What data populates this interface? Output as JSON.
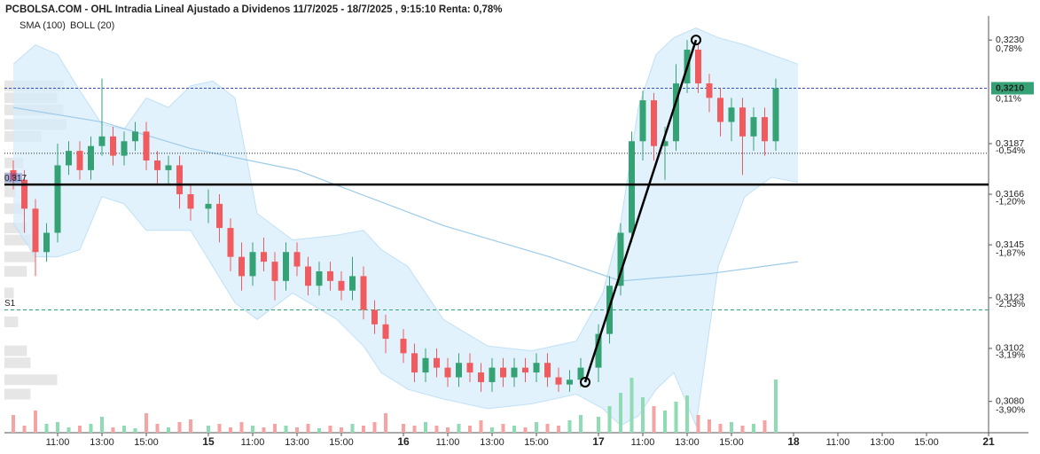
{
  "chart_data": {
    "type": "candlestick",
    "title": "PCBOLSA.COM - OHL Intradia Lineal Ajustado a Dividenos 11/7/2025 - 18/7/2025 , 9:15:10 Renta: 0,78%",
    "up_color": "#35a275",
    "down_color": "#ef5b5e",
    "xlim": [
      -0.4,
      44
    ],
    "ylim": [
      0.3067,
      0.324
    ],
    "y2lim": [
      -4.306,
      1.092
    ],
    "yticks": [
      {
        "value": 0.323,
        "label": "0,3230"
      },
      {
        "value": 0.3187,
        "label": "0,3187"
      },
      {
        "value": 0.3166,
        "label": "0,3166"
      },
      {
        "value": 0.3145,
        "label": "0,3145"
      },
      {
        "value": 0.3123,
        "label": "0,3123"
      },
      {
        "value": 0.3102,
        "label": "0,3102"
      },
      {
        "value": 0.308,
        "label": "0,3080"
      }
    ],
    "y2ticks": [
      {
        "value": 0.78,
        "label": "0,78%"
      },
      {
        "value": -0.54,
        "label": "-0,54%"
      },
      {
        "value": -1.2,
        "label": "-1,20%"
      },
      {
        "value": -1.87,
        "label": "-1,87%"
      },
      {
        "value": -2.53,
        "label": "-2,53%"
      },
      {
        "value": -3.19,
        "label": "-3,19%"
      },
      {
        "value": -3.9,
        "label": "-3,90%"
      }
    ],
    "xticks": [
      {
        "value": 2,
        "label": "11:00"
      },
      {
        "value": 4,
        "label": "13:00"
      },
      {
        "value": 6,
        "label": "15:00"
      },
      {
        "value": 8.8,
        "label": "15"
      },
      {
        "value": 10.8,
        "label": "11:00"
      },
      {
        "value": 12.8,
        "label": "13:00"
      },
      {
        "value": 14.8,
        "label": "15:00"
      },
      {
        "value": 17.6,
        "label": "16"
      },
      {
        "value": 19.6,
        "label": "11:00"
      },
      {
        "value": 21.6,
        "label": "13:00"
      },
      {
        "value": 23.6,
        "label": "15:00"
      },
      {
        "value": 26.4,
        "label": "17"
      },
      {
        "value": 28.4,
        "label": "11:00"
      },
      {
        "value": 30.4,
        "label": "13:00"
      },
      {
        "value": 32.4,
        "label": "15:00"
      },
      {
        "value": 35.2,
        "label": "18"
      },
      {
        "value": 37.2,
        "label": "11:00"
      },
      {
        "value": 39.2,
        "label": "13:00"
      },
      {
        "value": 41.2,
        "label": "15:00"
      },
      {
        "value": 44,
        "label": "21"
      }
    ],
    "x": [
      0,
      0.5,
      1,
      1.5,
      2,
      2.5,
      3,
      3.5,
      4,
      4.5,
      5,
      5.5,
      6,
      6.5,
      7,
      7.5,
      8,
      8.8,
      9.3,
      9.8,
      10.3,
      10.8,
      11.3,
      11.8,
      12.3,
      12.8,
      13.3,
      13.8,
      14.3,
      14.8,
      15.3,
      15.8,
      16.3,
      16.8,
      17.6,
      18.1,
      18.6,
      19.1,
      19.6,
      20.1,
      20.6,
      21.1,
      21.6,
      22.1,
      22.6,
      23.1,
      23.6,
      24.1,
      24.6,
      25.1,
      25.6,
      26.4,
      26.9,
      27.4,
      27.9,
      28.4,
      28.9,
      29.4,
      29.9,
      30.4,
      30.9,
      31.4,
      31.9,
      32.4,
      32.9,
      33.4,
      33.9,
      34.4
    ],
    "open": [
      0.3176,
      0.3172,
      0.316,
      0.3142,
      0.315,
      0.3178,
      0.3184,
      0.3176,
      0.3186,
      0.319,
      0.3182,
      0.3188,
      0.3192,
      0.318,
      0.3176,
      0.3178,
      0.3166,
      0.316,
      0.3162,
      0.3152,
      0.314,
      0.3132,
      0.3142,
      0.3138,
      0.313,
      0.3142,
      0.3136,
      0.3128,
      0.3134,
      0.313,
      0.3126,
      0.3132,
      0.3118,
      0.3112,
      0.3106,
      0.31,
      0.3092,
      0.3098,
      0.3094,
      0.309,
      0.3096,
      0.3092,
      0.3088,
      0.3094,
      0.309,
      0.3094,
      0.3092,
      0.3096,
      0.309,
      0.3087,
      0.3089,
      0.3094,
      0.3108,
      0.3128,
      0.315,
      0.3188,
      0.3205,
      0.3186,
      0.3188,
      0.3212,
      0.3226,
      0.3212,
      0.3206,
      0.3196,
      0.3202,
      0.319,
      0.3198,
      0.3188
    ],
    "high": [
      0.318,
      0.3176,
      0.3164,
      0.3154,
      0.3187,
      0.3188,
      0.3188,
      0.319,
      0.3214,
      0.3194,
      0.3192,
      0.3196,
      0.3196,
      0.3184,
      0.3182,
      0.3182,
      0.317,
      0.3168,
      0.3166,
      0.3156,
      0.3146,
      0.3146,
      0.3148,
      0.3142,
      0.3146,
      0.3146,
      0.314,
      0.3138,
      0.3138,
      0.3134,
      0.314,
      0.3136,
      0.3122,
      0.3116,
      0.311,
      0.3104,
      0.3102,
      0.3102,
      0.3098,
      0.31,
      0.31,
      0.3096,
      0.3098,
      0.3098,
      0.3098,
      0.3098,
      0.31,
      0.31,
      0.3094,
      0.3093,
      0.3098,
      0.3112,
      0.3132,
      0.3154,
      0.3192,
      0.3209,
      0.3208,
      0.3194,
      0.322,
      0.323,
      0.3228,
      0.3216,
      0.321,
      0.3206,
      0.3206,
      0.3202,
      0.3202,
      0.3214
    ],
    "low": [
      0.3168,
      0.315,
      0.3132,
      0.3138,
      0.3146,
      0.3174,
      0.3172,
      0.3172,
      0.3182,
      0.3178,
      0.3178,
      0.3184,
      0.3176,
      0.317,
      0.317,
      0.316,
      0.3155,
      0.3154,
      0.3146,
      0.3134,
      0.3126,
      0.3128,
      0.3134,
      0.3122,
      0.3126,
      0.3132,
      0.3124,
      0.3124,
      0.3126,
      0.3122,
      0.3122,
      0.3114,
      0.3108,
      0.31,
      0.3096,
      0.3088,
      0.3088,
      0.309,
      0.3086,
      0.3086,
      0.3088,
      0.3084,
      0.3084,
      0.3086,
      0.3086,
      0.3088,
      0.3088,
      0.3086,
      0.3084,
      0.3084,
      0.3086,
      0.3088,
      0.3104,
      0.3124,
      0.3146,
      0.318,
      0.318,
      0.3172,
      0.3184,
      0.3208,
      0.3208,
      0.32,
      0.319,
      0.3188,
      0.3174,
      0.3184,
      0.3182,
      0.3184
    ],
    "close": [
      0.3172,
      0.316,
      0.3142,
      0.315,
      0.3178,
      0.3184,
      0.3176,
      0.3186,
      0.319,
      0.3182,
      0.3188,
      0.3192,
      0.318,
      0.3176,
      0.3178,
      0.3166,
      0.316,
      0.3162,
      0.3152,
      0.314,
      0.3132,
      0.3142,
      0.3138,
      0.313,
      0.3142,
      0.3136,
      0.3128,
      0.3134,
      0.313,
      0.3126,
      0.3132,
      0.3118,
      0.3112,
      0.3106,
      0.31,
      0.3092,
      0.3098,
      0.3094,
      0.309,
      0.3096,
      0.3092,
      0.3088,
      0.3094,
      0.309,
      0.3094,
      0.3092,
      0.3096,
      0.309,
      0.3087,
      0.3089,
      0.3094,
      0.3108,
      0.3128,
      0.315,
      0.3188,
      0.3205,
      0.3186,
      0.3188,
      0.3212,
      0.3226,
      0.3212,
      0.3206,
      0.3196,
      0.3202,
      0.319,
      0.3198,
      0.3188,
      0.321
    ],
    "volume_ylim": [
      0,
      100
    ],
    "volume": [
      20,
      8,
      25,
      10,
      12,
      6,
      8,
      10,
      18,
      6,
      8,
      5,
      22,
      10,
      6,
      12,
      15,
      8,
      10,
      6,
      12,
      8,
      6,
      10,
      8,
      6,
      10,
      5,
      8,
      6,
      10,
      8,
      12,
      22,
      10,
      8,
      12,
      8,
      6,
      10,
      8,
      14,
      6,
      10,
      8,
      6,
      12,
      10,
      8,
      14,
      20,
      18,
      30,
      45,
      62,
      40,
      30,
      25,
      35,
      42,
      20,
      15,
      10,
      12,
      8,
      10,
      14,
      60
    ],
    "indicators": [
      {
        "name": "SMA (100)",
        "color": "#9ccbea"
      },
      {
        "name": "BOLL (20)",
        "color": "#cfcfcf"
      }
    ],
    "sma": {
      "x": [
        0,
        4,
        8,
        12.8,
        19.4,
        24.2,
        27.4,
        31.4,
        35.4
      ],
      "values": [
        0.3202,
        0.3196,
        0.3185,
        0.3176,
        0.3153,
        0.314,
        0.313,
        0.3133,
        0.3138
      ]
    },
    "bollinger": {
      "x": [
        0,
        1,
        2,
        3,
        4,
        5,
        6,
        7,
        8,
        9,
        10,
        11,
        12.6,
        14.6,
        15.8,
        16.6,
        17.8,
        19.4,
        21.4,
        23.4,
        25.4,
        26.6,
        27.4,
        28.2,
        29,
        29.8,
        30.8,
        31.8,
        33,
        34.2,
        35.4
      ],
      "upper": [
        0.322,
        0.3228,
        0.3224,
        0.3209,
        0.3195,
        0.3193,
        0.3206,
        0.3202,
        0.3211,
        0.3213,
        0.3206,
        0.3158,
        0.3147,
        0.3149,
        0.3151,
        0.3143,
        0.3136,
        0.3114,
        0.3103,
        0.3101,
        0.3105,
        0.3125,
        0.3154,
        0.3202,
        0.3224,
        0.3231,
        0.3235,
        0.3231,
        0.3228,
        0.3224,
        0.322
      ],
      "lower": [
        0.3154,
        0.314,
        0.314,
        0.3143,
        0.3165,
        0.3162,
        0.3151,
        0.3151,
        0.3151,
        0.3136,
        0.3121,
        0.3114,
        0.3125,
        0.3114,
        0.3103,
        0.3092,
        0.3085,
        0.3081,
        0.3077,
        0.3079,
        0.3083,
        0.3077,
        0.307,
        0.3074,
        0.3085,
        0.3092,
        0.307,
        0.3136,
        0.3165,
        0.3173,
        0.3171
      ]
    },
    "volume_profile_lim": [
      0,
      100
    ],
    "volume_profile": {
      "prices": [
        0.3211,
        0.3206,
        0.3201,
        0.3195,
        0.319,
        0.3179,
        0.3173,
        0.3167,
        0.316,
        0.3152,
        0.3147,
        0.314,
        0.3134,
        0.3125,
        0.3113,
        0.3101,
        0.3096,
        0.3089,
        0.3083
      ],
      "values": [
        95,
        85,
        95,
        100,
        60,
        30,
        22,
        18,
        30,
        36,
        42,
        50,
        36,
        15,
        22,
        36,
        42,
        85,
        42
      ]
    },
    "last_price": {
      "value": 0.321,
      "label": "0,3210",
      "change": {
        "value": 0.11,
        "label": "0,11%"
      }
    },
    "level_black": {
      "value": 0.317,
      "label": "0,317"
    },
    "level_dotted": 0.3183,
    "support": {
      "value": 0.3118,
      "label": "S1"
    },
    "trendline": {
      "x": [
        25.8,
        30.8
      ],
      "y": [
        0.3088,
        0.323
      ]
    }
  }
}
